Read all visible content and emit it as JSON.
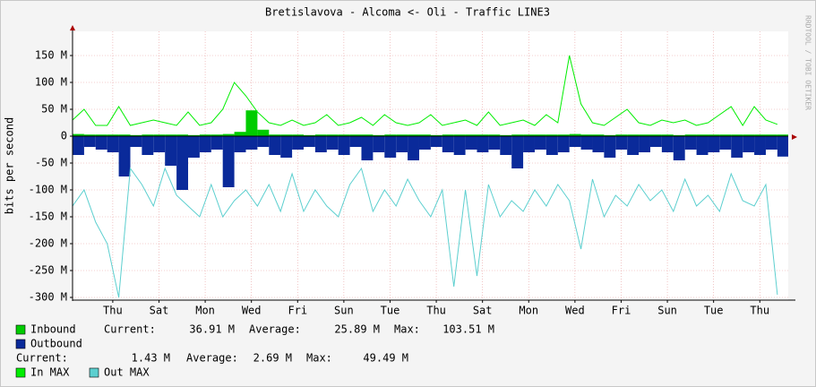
{
  "chart_data": {
    "type": "area",
    "title": "Bretislavova - Alcoma <- Oli - Traffic LINE3",
    "y_label": "bits per second",
    "watermark": "RRDTOOL / TOBI OETIKER",
    "xlim": [
      0,
      30.97
    ],
    "ylim": [
      -305,
      195
    ],
    "grid": true,
    "xticks": [
      {
        "value": 1.74,
        "label": "Thu"
      },
      {
        "value": 3.74,
        "label": "Sat"
      },
      {
        "value": 5.74,
        "label": "Mon"
      },
      {
        "value": 7.74,
        "label": "Wed"
      },
      {
        "value": 9.74,
        "label": "Fri"
      },
      {
        "value": 11.74,
        "label": "Sun"
      },
      {
        "value": 13.74,
        "label": "Tue"
      },
      {
        "value": 15.74,
        "label": "Thu"
      },
      {
        "value": 17.74,
        "label": "Sat"
      },
      {
        "value": 19.74,
        "label": "Mon"
      },
      {
        "value": 21.74,
        "label": "Wed"
      },
      {
        "value": 23.74,
        "label": "Fri"
      },
      {
        "value": 25.74,
        "label": "Sun"
      },
      {
        "value": 27.74,
        "label": "Tue"
      },
      {
        "value": 29.74,
        "label": "Thu"
      }
    ],
    "yticks": [
      {
        "value": 150,
        "label": "150 M"
      },
      {
        "value": 100,
        "label": "100 M"
      },
      {
        "value": 50,
        "label": "50 M"
      },
      0,
      {
        "value": -50,
        "label": "-50 M"
      },
      {
        "value": -100,
        "label": "-100 M"
      },
      {
        "value": -150,
        "label": "-150 M"
      },
      {
        "value": -200,
        "label": "-200 M"
      },
      {
        "value": -250,
        "label": "-250 M"
      },
      {
        "value": -300,
        "label": "-300 M"
      }
    ],
    "x": [
      0,
      0.5,
      1,
      1.5,
      2,
      2.5,
      3,
      3.5,
      4,
      4.5,
      5,
      5.5,
      6,
      6.5,
      7,
      7.5,
      8,
      8.5,
      9,
      9.5,
      10,
      10.5,
      11,
      11.5,
      12,
      12.5,
      13,
      13.5,
      14,
      14.5,
      15,
      15.5,
      16,
      16.5,
      17,
      17.5,
      18,
      18.5,
      19,
      19.5,
      20,
      20.5,
      21,
      21.5,
      22,
      22.5,
      23,
      23.5,
      24,
      24.5,
      25,
      25.5,
      26,
      26.5,
      27,
      27.5,
      28,
      28.5,
      29,
      29.5,
      30,
      30.5
    ],
    "series": [
      {
        "name": "Inbound",
        "color": "#00cc00",
        "style": "area",
        "values": [
          4,
          3,
          3,
          3,
          3,
          2,
          3,
          3,
          3,
          3,
          2,
          3,
          3,
          4,
          8,
          48,
          12,
          3,
          3,
          3,
          2,
          3,
          3,
          3,
          3,
          3,
          2,
          3,
          3,
          3,
          3,
          2,
          3,
          3,
          3,
          3,
          3,
          2,
          3,
          3,
          3,
          3,
          3,
          4,
          3,
          3,
          2,
          3,
          3,
          3,
          3,
          3,
          2,
          3,
          3,
          3,
          3,
          3,
          3,
          3,
          3,
          3
        ]
      },
      {
        "name": "Outbound",
        "color": "#0a2a9a",
        "style": "area",
        "values": [
          -35,
          -20,
          -25,
          -30,
          -75,
          -20,
          -35,
          -30,
          -55,
          -100,
          -40,
          -30,
          -25,
          -95,
          -30,
          -25,
          -20,
          -35,
          -40,
          -25,
          -20,
          -30,
          -25,
          -35,
          -20,
          -45,
          -30,
          -40,
          -30,
          -45,
          -25,
          -20,
          -30,
          -35,
          -25,
          -30,
          -25,
          -35,
          -60,
          -30,
          -25,
          -35,
          -30,
          -20,
          -25,
          -30,
          -40,
          -25,
          -35,
          -30,
          -20,
          -30,
          -45,
          -25,
          -35,
          -30,
          -25,
          -40,
          -30,
          -35,
          -25,
          -38
        ]
      },
      {
        "name": "In MAX",
        "color": "#00ee00",
        "style": "line",
        "values": [
          30,
          50,
          20,
          20,
          55,
          20,
          25,
          30,
          25,
          20,
          45,
          20,
          25,
          50,
          100,
          75,
          45,
          25,
          20,
          30,
          20,
          25,
          40,
          20,
          25,
          35,
          20,
          40,
          25,
          20,
          25,
          40,
          20,
          25,
          30,
          20,
          45,
          20,
          25,
          30,
          20,
          40,
          25,
          150,
          60,
          25,
          20,
          35,
          50,
          25,
          20,
          30,
          25,
          30,
          20,
          25,
          40,
          55,
          20,
          55,
          30,
          22
        ]
      },
      {
        "name": "Out MAX",
        "color": "#5ccfcf",
        "style": "line",
        "values": [
          -130,
          -100,
          -160,
          -200,
          -300,
          -60,
          -90,
          -130,
          -60,
          -110,
          -130,
          -150,
          -90,
          -150,
          -120,
          -100,
          -130,
          -90,
          -140,
          -70,
          -140,
          -100,
          -130,
          -150,
          -90,
          -60,
          -140,
          -100,
          -130,
          -80,
          -120,
          -150,
          -100,
          -280,
          -100,
          -260,
          -90,
          -150,
          -120,
          -140,
          -100,
          -130,
          -90,
          -120,
          -210,
          -80,
          -150,
          -110,
          -130,
          -90,
          -120,
          -100,
          -140,
          -80,
          -130,
          -110,
          -140,
          -70,
          -120,
          -130,
          -90,
          -295
        ]
      }
    ],
    "legend_stats": [
      [
        "Current:",
        "36.91 M",
        "Average:",
        "25.89 M",
        "Max:",
        "103.51 M"
      ],
      [
        "Current:",
        "1.43 M",
        "Average:",
        "2.69 M",
        "Max:",
        "49.49 M"
      ]
    ]
  }
}
